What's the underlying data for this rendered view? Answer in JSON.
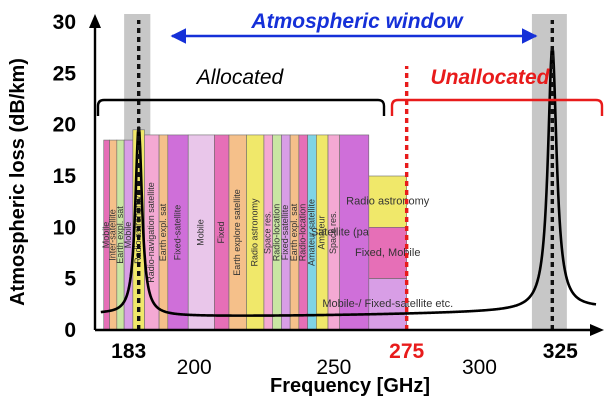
{
  "chart_data": {
    "type": "line",
    "xlabel": "Frequency [GHz]",
    "ylabel": "Atmospheric loss (dB/km)",
    "xlim": [
      168,
      340
    ],
    "ylim": [
      0,
      30
    ],
    "y_ticks": [
      "0",
      "5",
      "10",
      "15",
      "20",
      "25",
      "30"
    ],
    "x_ticks": [
      {
        "value": 183,
        "label": "183",
        "style": "bold"
      },
      {
        "value": 200,
        "label": "200",
        "style": "normal"
      },
      {
        "value": 250,
        "label": "250",
        "style": "normal"
      },
      {
        "value": 275,
        "label": "275",
        "style": "red"
      },
      {
        "value": 300,
        "label": "300",
        "style": "normal"
      },
      {
        "value": 325,
        "label": "325",
        "style": "bold"
      }
    ],
    "absorption_lines": [
      {
        "center": 183,
        "half_width": 1.4,
        "peak": 19.8
      },
      {
        "center": 325,
        "half_width": 1.8,
        "peak": 27.6
      }
    ],
    "series": [
      {
        "values": [
          [
            170,
            1.6
          ],
          [
            176,
            2.1
          ],
          [
            179,
            3.3
          ],
          [
            181,
            7.2
          ],
          [
            183,
            19.8
          ],
          [
            185,
            7.2
          ],
          [
            187,
            3.1
          ],
          [
            192,
            1.7
          ],
          [
            200,
            1.35
          ],
          [
            220,
            1.5
          ],
          [
            250,
            1.9
          ],
          [
            275,
            2.4
          ],
          [
            300,
            3.3
          ],
          [
            312,
            4.4
          ],
          [
            318,
            6.3
          ],
          [
            322,
            11.7
          ],
          [
            325,
            27.6
          ],
          [
            328,
            11.8
          ],
          [
            331,
            6.3
          ],
          [
            336,
            4.4
          ],
          [
            340,
            3.8
          ]
        ]
      }
    ],
    "shaded_bands": [
      [
        178,
        187
      ],
      [
        318,
        330
      ]
    ],
    "dashed_lines": [
      {
        "x": 183,
        "color": "#111111"
      },
      {
        "x": 325,
        "color": "#111111"
      },
      {
        "x": 275,
        "color": "#e81b1b"
      }
    ],
    "annotations": {
      "window": "Atmospheric window",
      "allocated": "Allocated",
      "unallocated": "Unallocated"
    },
    "colors": {
      "window": "#1530d8",
      "unallocated": "#e81b1b",
      "shade": "#bdbdbd",
      "curve": "#000000"
    },
    "allocations": [
      {
        "x0": 171,
        "x1": 173,
        "yt": 18.5,
        "color": "#e66fb7",
        "label": "Mobile"
      },
      {
        "x0": 173,
        "x1": 175.5,
        "yt": 18.5,
        "color": "#f5c08a",
        "label": "Inter-satellite"
      },
      {
        "x0": 175.5,
        "x1": 178,
        "yt": 18.5,
        "color": "#c9e6a3",
        "label": "Earth expl. sat"
      },
      {
        "x0": 178,
        "x1": 181,
        "yt": 18.5,
        "color": "#d89ee6",
        "label": "Mobile"
      },
      {
        "x0": 181,
        "x1": 185,
        "yt": 19.5,
        "color": "#f0e86a",
        "label": "Radio astronomy"
      },
      {
        "x0": 185,
        "x1": 190,
        "yt": 19,
        "color": "#f4a9d3",
        "label": "Radio-navigation satellite"
      },
      {
        "x0": 190,
        "x1": 193,
        "yt": 19,
        "color": "#f5c08a",
        "label": "Earth expl. sat"
      },
      {
        "x0": 193,
        "x1": 200,
        "yt": 19,
        "color": "#cf6fd9",
        "label": "Fixed-satellite"
      },
      {
        "x0": 200,
        "x1": 209,
        "yt": 19,
        "color": "#e9c6ea",
        "label": "Mobile"
      },
      {
        "x0": 209,
        "x1": 214,
        "yt": 19,
        "color": "#e66fb7",
        "label": "Fixed"
      },
      {
        "x0": 214,
        "x1": 220,
        "yt": 19,
        "color": "#f5c08a",
        "label": "Earth explore satellite"
      },
      {
        "x0": 220,
        "x1": 226,
        "yt": 19,
        "color": "#f0e86a",
        "label": "Radio astronomy"
      },
      {
        "x0": 226,
        "x1": 229,
        "yt": 19,
        "color": "#f4a9d3",
        "label": "Space res."
      },
      {
        "x0": 229,
        "x1": 232,
        "yt": 19,
        "color": "#c9e6a3",
        "label": "Radio-location"
      },
      {
        "x0": 232,
        "x1": 235,
        "yt": 19,
        "color": "#d89ee6",
        "label": "Fixed-satellite"
      },
      {
        "x0": 235,
        "x1": 238,
        "yt": 19,
        "color": "#f5c08a",
        "label": "Earth expl. sat"
      },
      {
        "x0": 238,
        "x1": 241,
        "yt": 19,
        "color": "#e66fb7",
        "label": "Radio-location"
      },
      {
        "x0": 241,
        "x1": 244,
        "yt": 19,
        "color": "#7fd4e6",
        "label": "Amateur satellite"
      },
      {
        "x0": 244,
        "x1": 248,
        "yt": 19,
        "color": "#f0e86a",
        "label": "Amateur"
      },
      {
        "x0": 248,
        "x1": 252,
        "yt": 19,
        "color": "#f4a9d3",
        "label": "Space res."
      },
      {
        "x0": 252,
        "x1": 262,
        "yt": 19,
        "color": "#cf6fd9",
        "label": "Satellite (passive)"
      },
      {
        "x0": 262,
        "x1": 275,
        "yt": 15,
        "color": "#f0e86a",
        "label": "Radio astronomy"
      },
      {
        "x0": 262,
        "x1": 275,
        "yt": 10,
        "color": "#e66fb7",
        "label": "Fixed, Mobile"
      },
      {
        "x0": 262,
        "x1": 275,
        "yt": 5,
        "color": "#d89ee6",
        "label": "Mobile-/ Fixed-satellite etc."
      }
    ]
  }
}
